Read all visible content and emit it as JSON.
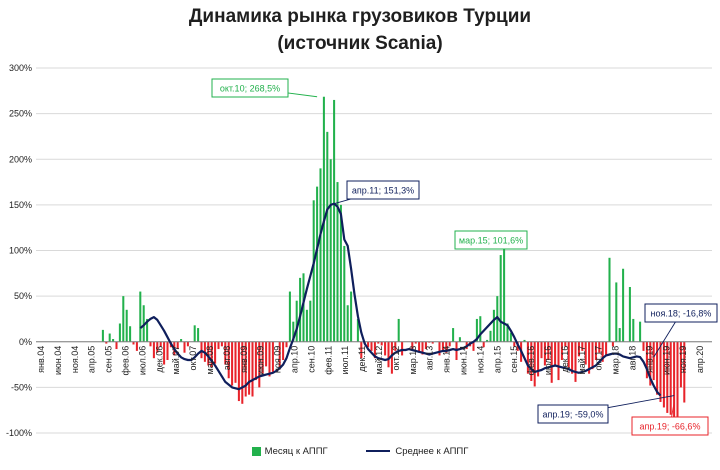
{
  "chart_data": {
    "type": "bar",
    "title": "Динамика рынка грузовиков Турции",
    "subtitle": "(источник Scania)",
    "ylim": [
      -100,
      300
    ],
    "yticks": [
      "-100%",
      "-50%",
      "0%",
      "50%",
      "100%",
      "150%",
      "200%",
      "250%",
      "300%"
    ],
    "x_tick_labels": [
      "янв.04",
      "июн.04",
      "ноя.04",
      "апр.05",
      "сен.05",
      "фев.06",
      "июл.06",
      "дек.06",
      "май.07",
      "окт.07",
      "мар.08",
      "авг.08",
      "янв.09",
      "июн.09",
      "ноя.09",
      "апр.10",
      "сен.10",
      "фев.11",
      "июл.11",
      "дек.11",
      "май.12",
      "окт.12",
      "мар.13",
      "авг.13",
      "янв.14",
      "июн.14",
      "ноя.14",
      "апр.15",
      "сен.15",
      "фев.16",
      "июл.16",
      "дек.16",
      "май.17",
      "окт.17",
      "мар.18",
      "авг.18",
      "янв.19",
      "июн.19",
      "ноя.19",
      "апр.20"
    ],
    "grid": true,
    "legend_position": "bottom",
    "series": [
      {
        "name": "Месяц к АППГ",
        "color": "#22b14c",
        "negative_color": "#e8232a",
        "values": [
          0,
          0,
          0,
          0,
          0,
          0,
          0,
          0,
          0,
          0,
          0,
          0,
          0,
          0,
          0,
          0,
          0,
          0,
          13,
          -2,
          9,
          3,
          -8,
          20,
          50,
          35,
          17,
          -3,
          -10,
          55,
          40,
          25,
          -5,
          -18,
          -12,
          -5,
          -25,
          -20,
          -6,
          -15,
          -8,
          3,
          -12,
          -5,
          0,
          18,
          15,
          -18,
          -22,
          -26,
          -28,
          -24,
          -8,
          -5,
          -25,
          -40,
          -48,
          -45,
          -65,
          -68,
          -60,
          -58,
          -60,
          -42,
          -50,
          -35,
          -27,
          -38,
          -33,
          0,
          -30,
          -20,
          -6,
          55,
          22,
          45,
          70,
          75,
          35,
          45,
          155,
          170,
          190,
          268.5,
          230,
          200,
          265,
          175,
          150,
          105,
          40,
          55,
          0,
          25,
          -18,
          -2,
          -6,
          -10,
          -18,
          -2,
          -4,
          -15,
          -28,
          -35,
          -10,
          25,
          -15,
          0,
          0,
          -8,
          -2,
          -12,
          -14,
          -8,
          -1,
          -2,
          0,
          -15,
          -10,
          -12,
          -5,
          15,
          -20,
          5,
          0,
          -8,
          -5,
          -10,
          25,
          28,
          -6,
          2,
          12,
          35,
          50,
          95,
          101.6,
          20,
          10,
          -5,
          -10,
          -22,
          2,
          -35,
          -43,
          -49,
          -38,
          -18,
          -26,
          -20,
          -45,
          -25,
          -42,
          -20,
          -5,
          -28,
          -35,
          -44,
          -16,
          -10,
          -25,
          -35,
          -30,
          -20,
          -12,
          -22,
          -15,
          92,
          -5,
          65,
          15,
          80,
          0,
          60,
          25,
          0,
          22,
          -10,
          -40,
          -48,
          -42,
          -58,
          -66,
          -72,
          -78,
          -80,
          -82,
          -85,
          -50,
          -66.6
        ]
      },
      {
        "name": "Среднее к АППГ",
        "color": "#0f1f5c",
        "values": [
          null,
          null,
          null,
          null,
          null,
          null,
          null,
          null,
          null,
          null,
          null,
          null,
          null,
          null,
          null,
          null,
          null,
          null,
          null,
          null,
          null,
          null,
          null,
          null,
          null,
          null,
          null,
          null,
          null,
          15,
          18,
          22,
          25,
          27,
          24,
          18,
          12,
          5,
          -2,
          -8,
          -13,
          -17,
          -19,
          -20,
          -20,
          -17,
          -13,
          -10,
          -12,
          -16,
          -21,
          -26,
          -32,
          -38,
          -44,
          -47,
          -50,
          -51,
          -52,
          -50,
          -48,
          -44,
          -42,
          -40,
          -38,
          -37,
          -36,
          -35,
          -34,
          -32,
          -29,
          -25,
          -18,
          -7,
          3,
          14,
          28,
          43,
          58,
          72,
          86,
          102,
          118,
          132,
          145,
          150,
          151.3,
          148,
          140,
          112,
          105,
          80,
          52,
          28,
          10,
          -2,
          -8,
          -12,
          -16,
          -18,
          -19,
          -20,
          -19,
          -15,
          -12,
          -10,
          -9,
          -9,
          -8,
          -9,
          -10,
          -11,
          -12,
          -13,
          -14,
          -13,
          -12,
          -11,
          -10,
          -10,
          -9,
          -8,
          -9,
          -8,
          -7,
          -5,
          -2,
          0,
          3,
          8,
          12,
          16,
          20,
          24,
          27,
          22,
          20,
          18,
          12,
          5,
          -3,
          -10,
          -18,
          -26,
          -30,
          -33,
          -32,
          -31,
          -29,
          -28,
          -27,
          -26,
          -27,
          -28,
          -29,
          -30,
          -32,
          -33,
          -34,
          -33,
          -32,
          -30,
          -28,
          -26,
          -22,
          -18,
          -15,
          -14,
          -13,
          -13,
          -14,
          -16,
          -17,
          -18,
          -17,
          -16,
          -16.8,
          -22,
          -30,
          -40,
          -48,
          -55,
          -59.0
        ]
      }
    ],
    "annotations": [
      {
        "text": "окт.10; 268,5%",
        "color": "#22b14c"
      },
      {
        "text": "апр.11; 151,3%",
        "color": "#0f1f5c"
      },
      {
        "text": "мар.15; 101,6%",
        "color": "#22b14c"
      },
      {
        "text": "ноя.18; -16,8%",
        "color": "#0f1f5c"
      },
      {
        "text": "апр.19; -59,0%",
        "color": "#0f1f5c"
      },
      {
        "text": "апр.19; -66,6%",
        "color": "#e8232a"
      }
    ]
  }
}
